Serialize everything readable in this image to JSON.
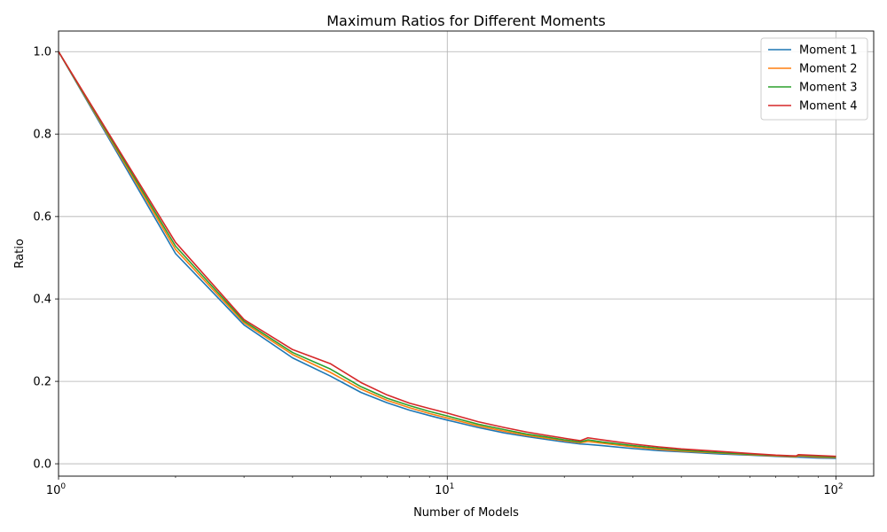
{
  "chart_data": {
    "type": "line",
    "title": "Maximum Ratios for Different Moments",
    "xlabel": "Number of Models",
    "ylabel": "Ratio",
    "xscale": "log",
    "xlim": [
      1,
      125
    ],
    "ylim": [
      -0.03,
      1.05
    ],
    "grid": true,
    "legend_position": "top-right",
    "x_ticks": [
      {
        "value": 1,
        "base": "10",
        "exp": "0"
      },
      {
        "value": 10,
        "base": "10",
        "exp": "1"
      },
      {
        "value": 100,
        "base": "10",
        "exp": "2"
      }
    ],
    "y_ticks": [
      {
        "value": 0.0,
        "label": "0.0"
      },
      {
        "value": 0.2,
        "label": "0.2"
      },
      {
        "value": 0.4,
        "label": "0.4"
      },
      {
        "value": 0.6,
        "label": "0.6"
      },
      {
        "value": 0.8,
        "label": "0.8"
      },
      {
        "value": 1.0,
        "label": "1.0"
      }
    ],
    "x": [
      1,
      2,
      3,
      4,
      5,
      6,
      7,
      8,
      9,
      10,
      12,
      14,
      16,
      18,
      20,
      22,
      23,
      25,
      30,
      35,
      40,
      50,
      60,
      70,
      79,
      80,
      90,
      100
    ],
    "series": [
      {
        "name": "Moment 1",
        "color": "#1f77b4",
        "values": [
          1.0,
          0.51,
          0.337,
          0.257,
          0.213,
          0.173,
          0.148,
          0.13,
          0.117,
          0.106,
          0.088,
          0.075,
          0.066,
          0.059,
          0.053,
          0.048,
          0.047,
          0.044,
          0.037,
          0.032,
          0.029,
          0.024,
          0.021,
          0.018,
          0.016,
          0.016,
          0.014,
          0.013
        ]
      },
      {
        "name": "Moment 2",
        "color": "#ff7f0e",
        "values": [
          1.0,
          0.52,
          0.342,
          0.265,
          0.222,
          0.181,
          0.154,
          0.136,
          0.122,
          0.111,
          0.092,
          0.079,
          0.069,
          0.062,
          0.056,
          0.051,
          0.054,
          0.05,
          0.041,
          0.035,
          0.031,
          0.026,
          0.022,
          0.019,
          0.017,
          0.019,
          0.016,
          0.015
        ]
      },
      {
        "name": "Moment 3",
        "color": "#2ca02c",
        "values": [
          1.0,
          0.528,
          0.346,
          0.27,
          0.23,
          0.187,
          0.159,
          0.141,
          0.127,
          0.116,
          0.096,
          0.083,
          0.072,
          0.065,
          0.058,
          0.053,
          0.058,
          0.053,
          0.044,
          0.038,
          0.033,
          0.027,
          0.023,
          0.02,
          0.018,
          0.021,
          0.018,
          0.016
        ]
      },
      {
        "name": "Moment 4",
        "color": "#d62728",
        "values": [
          1.0,
          0.537,
          0.35,
          0.277,
          0.243,
          0.197,
          0.167,
          0.147,
          0.134,
          0.123,
          0.102,
          0.088,
          0.077,
          0.069,
          0.062,
          0.056,
          0.063,
          0.058,
          0.048,
          0.041,
          0.036,
          0.03,
          0.025,
          0.021,
          0.019,
          0.022,
          0.02,
          0.018
        ]
      }
    ]
  }
}
